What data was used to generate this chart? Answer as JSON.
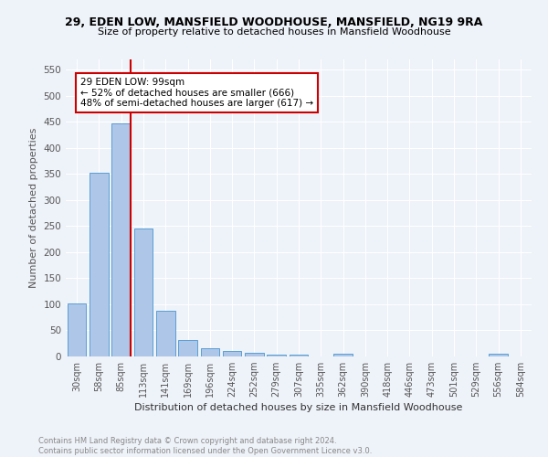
{
  "title1": "29, EDEN LOW, MANSFIELD WOODHOUSE, MANSFIELD, NG19 9RA",
  "title2": "Size of property relative to detached houses in Mansfield Woodhouse",
  "xlabel": "Distribution of detached houses by size in Mansfield Woodhouse",
  "ylabel": "Number of detached properties",
  "footer1": "Contains HM Land Registry data © Crown copyright and database right 2024.",
  "footer2": "Contains public sector information licensed under the Open Government Licence v3.0.",
  "bar_labels": [
    "30sqm",
    "58sqm",
    "85sqm",
    "113sqm",
    "141sqm",
    "169sqm",
    "196sqm",
    "224sqm",
    "252sqm",
    "279sqm",
    "307sqm",
    "335sqm",
    "362sqm",
    "390sqm",
    "418sqm",
    "446sqm",
    "473sqm",
    "501sqm",
    "529sqm",
    "556sqm",
    "584sqm"
  ],
  "bar_values": [
    102,
    353,
    447,
    245,
    88,
    31,
    15,
    10,
    7,
    4,
    4,
    0,
    6,
    0,
    0,
    0,
    0,
    0,
    0,
    5,
    0
  ],
  "bar_color": "#aec6e8",
  "bar_edge_color": "#5a9fd4",
  "bg_color": "#eef2f9",
  "grid_color": "#ffffff",
  "annotation_title": "29 EDEN LOW: 99sqm",
  "annotation_line1": "← 52% of detached houses are smaller (666)",
  "annotation_line2": "48% of semi-detached houses are larger (617) →",
  "red_line_color": "#cc0000",
  "annotation_box_color": "#ffffff",
  "annotation_border_color": "#cc0000",
  "ylim": [
    0,
    570
  ],
  "yticks": [
    0,
    50,
    100,
    150,
    200,
    250,
    300,
    350,
    400,
    450,
    500,
    550
  ]
}
